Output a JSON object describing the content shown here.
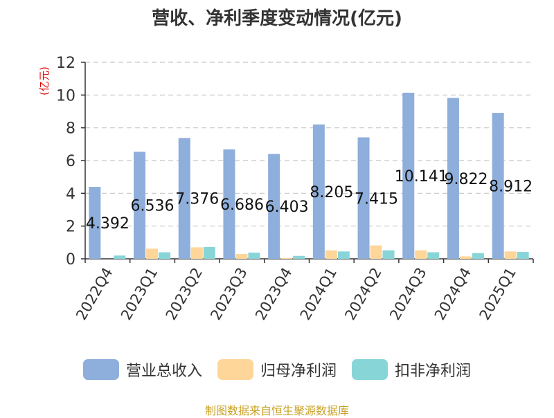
{
  "title": "营收、净利季度变动情况(亿元)",
  "source_text": "制图数据来自恒生聚源数据库",
  "chart_data": {
    "type": "bar",
    "title": "营收、净利季度变动情况(亿元)",
    "ylabel": "(亿元)",
    "xlabel": "",
    "ylim": [
      0,
      12
    ],
    "yticks": [
      0,
      2,
      4,
      6,
      8,
      10,
      12
    ],
    "grid": true,
    "legend_position": "bottom",
    "categories": [
      "2022Q4",
      "2023Q1",
      "2023Q2",
      "2023Q3",
      "2023Q4",
      "2024Q1",
      "2024Q2",
      "2024Q3",
      "2024Q4",
      "2025Q1"
    ],
    "series": [
      {
        "name": "营业总收入",
        "color": "#8eaedb",
        "values": [
          4.392,
          6.536,
          7.376,
          6.686,
          6.403,
          8.205,
          7.415,
          10.141,
          9.822,
          8.912
        ],
        "labels": [
          "4.392",
          "6.536",
          "7.376",
          "6.686",
          "6.403",
          "8.205",
          "7.415",
          "10.141",
          "9.822",
          "8.912"
        ]
      },
      {
        "name": "归母净利润",
        "color": "#ffd699",
        "values": [
          0.0,
          0.62,
          0.7,
          0.3,
          0.05,
          0.52,
          0.82,
          0.52,
          0.15,
          0.45
        ]
      },
      {
        "name": "扣非净利润",
        "color": "#88d5d8",
        "values": [
          0.2,
          0.4,
          0.72,
          0.38,
          0.18,
          0.45,
          0.52,
          0.4,
          0.35,
          0.42
        ]
      }
    ]
  }
}
